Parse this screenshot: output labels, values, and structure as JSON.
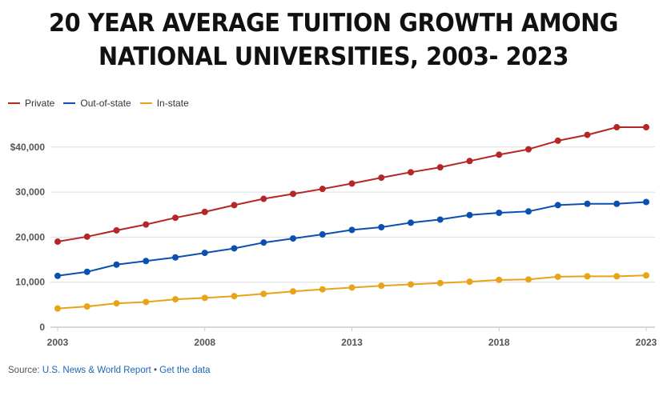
{
  "chart_data": {
    "type": "line",
    "title": "20 YEAR AVERAGE TUITION GROWTH AMONG NATIONAL UNIVERSITIES, 2003- 2023",
    "title_lines": [
      "20 YEAR AVERAGE TUITION GROWTH AMONG",
      "NATIONAL UNIVERSITIES, 2003- 2023"
    ],
    "xlabel": "",
    "ylabel": "",
    "x": [
      2003,
      2004,
      2005,
      2006,
      2007,
      2008,
      2009,
      2010,
      2011,
      2012,
      2013,
      2014,
      2015,
      2016,
      2017,
      2018,
      2019,
      2020,
      2021,
      2022,
      2023
    ],
    "xlim": [
      2003,
      2023
    ],
    "ylim": [
      0,
      45000
    ],
    "x_ticks": [
      2003,
      2008,
      2013,
      2018,
      2023
    ],
    "x_tick_labels": [
      "2003",
      "2008",
      "2013",
      "2018",
      "2023"
    ],
    "y_ticks": [
      0,
      10000,
      20000,
      30000,
      40000
    ],
    "y_tick_labels": [
      "0",
      "10,000",
      "20,000",
      "30,000",
      "$40,000"
    ],
    "grid": true,
    "legend_position": "top-left",
    "series": [
      {
        "name": "Private",
        "color": "#b52626",
        "values": [
          19000,
          20100,
          21500,
          22800,
          24300,
          25600,
          27100,
          28500,
          29600,
          30700,
          31900,
          33200,
          34400,
          35500,
          36900,
          38300,
          39500,
          41400,
          42700,
          44400,
          44400
        ]
      },
      {
        "name": "Out-of-state",
        "color": "#0b4fb1",
        "values": [
          11400,
          12300,
          13900,
          14700,
          15500,
          16500,
          17500,
          18800,
          19700,
          20600,
          21600,
          22200,
          23200,
          23900,
          24900,
          25400,
          25700,
          27100,
          27400,
          27400,
          27800
        ]
      },
      {
        "name": "In-state",
        "color": "#e8a317",
        "values": [
          4150,
          4600,
          5300,
          5600,
          6200,
          6500,
          6900,
          7400,
          7950,
          8400,
          8800,
          9200,
          9500,
          9800,
          10100,
          10500,
          10600,
          11200,
          11300,
          11300,
          11500
        ]
      }
    ]
  },
  "footer": {
    "source_prefix": "Source: ",
    "source_link": "U.S. News & World Report",
    "separator": " • ",
    "data_link": "Get the data"
  }
}
